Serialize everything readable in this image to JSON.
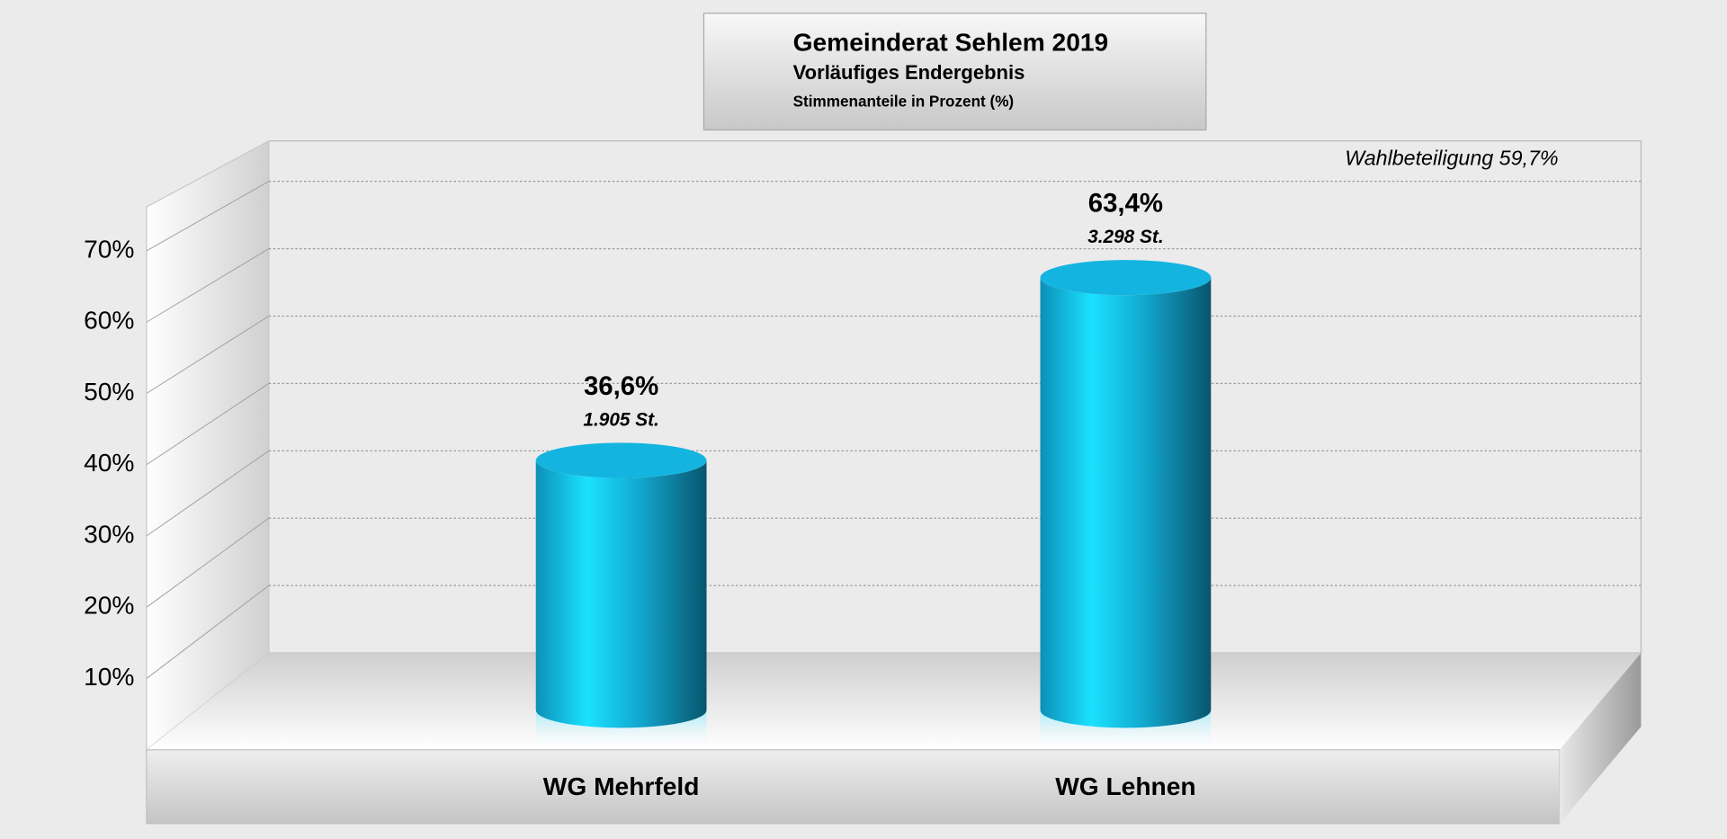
{
  "chart_data": {
    "type": "bar",
    "title": "Gemeinderat Sehlem 2019",
    "subtitle": "Vorläufiges Endergebnis",
    "caption": "Stimmenanteile in Prozent (%)",
    "annotation": "Wahlbeteiligung 59,7%",
    "categories": [
      "WG Mehrfeld",
      "WG Lehnen"
    ],
    "values": [
      36.6,
      63.4
    ],
    "value_labels": [
      "36,6%",
      "63,4%"
    ],
    "vote_labels": [
      "1.905 St.",
      "3.298 St."
    ],
    "color": "#14b4e0",
    "ylim": [
      0,
      76
    ],
    "yticks": [
      {
        "value": 10,
        "label": "10%"
      },
      {
        "value": 20,
        "label": "20%"
      },
      {
        "value": 30,
        "label": "30%"
      },
      {
        "value": 40,
        "label": "40%"
      },
      {
        "value": 50,
        "label": "50%"
      },
      {
        "value": 60,
        "label": "60%"
      },
      {
        "value": 70,
        "label": "70%"
      }
    ],
    "grid": true
  }
}
